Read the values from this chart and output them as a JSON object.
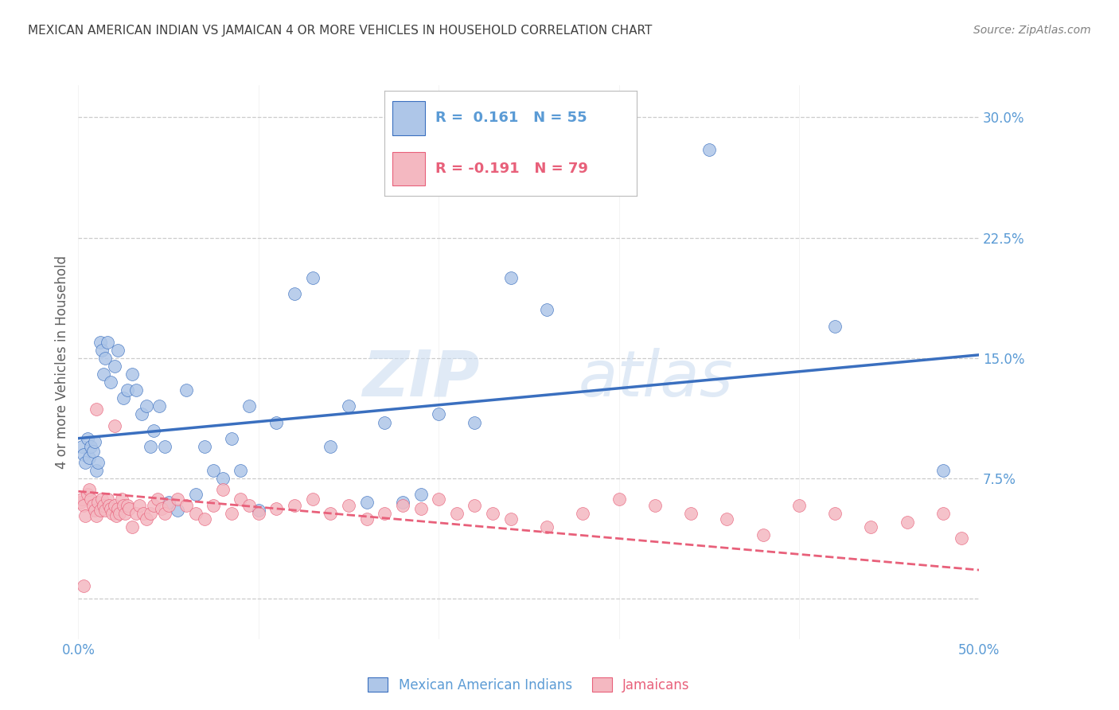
{
  "title": "MEXICAN AMERICAN INDIAN VS JAMAICAN 4 OR MORE VEHICLES IN HOUSEHOLD CORRELATION CHART",
  "source": "Source: ZipAtlas.com",
  "ylabel": "4 or more Vehicles in Household",
  "xmin": 0.0,
  "xmax": 0.5,
  "ymin": -0.025,
  "ymax": 0.32,
  "yticks": [
    0.0,
    0.075,
    0.15,
    0.225,
    0.3
  ],
  "ytick_labels": [
    "",
    "7.5%",
    "15.0%",
    "22.5%",
    "30.0%"
  ],
  "xticks": [
    0.0,
    0.5
  ],
  "xtick_labels": [
    "0.0%",
    "50.0%"
  ],
  "blue_R": "0.161",
  "blue_N": "55",
  "pink_R": "-0.191",
  "pink_N": "79",
  "blue_line_x": [
    0.0,
    0.5
  ],
  "blue_line_y": [
    0.1,
    0.152
  ],
  "pink_line_x": [
    0.0,
    0.5
  ],
  "pink_line_y": [
    0.067,
    0.018
  ],
  "blue_dots_x": [
    0.002,
    0.003,
    0.004,
    0.005,
    0.006,
    0.007,
    0.008,
    0.009,
    0.01,
    0.011,
    0.012,
    0.013,
    0.014,
    0.015,
    0.016,
    0.018,
    0.02,
    0.022,
    0.025,
    0.027,
    0.03,
    0.032,
    0.035,
    0.038,
    0.04,
    0.042,
    0.045,
    0.048,
    0.05,
    0.055,
    0.06,
    0.065,
    0.07,
    0.075,
    0.08,
    0.085,
    0.09,
    0.095,
    0.1,
    0.11,
    0.12,
    0.13,
    0.14,
    0.15,
    0.16,
    0.17,
    0.18,
    0.19,
    0.2,
    0.22,
    0.24,
    0.26,
    0.35,
    0.42,
    0.48
  ],
  "blue_dots_y": [
    0.095,
    0.09,
    0.085,
    0.1,
    0.088,
    0.095,
    0.092,
    0.098,
    0.08,
    0.085,
    0.16,
    0.155,
    0.14,
    0.15,
    0.16,
    0.135,
    0.145,
    0.155,
    0.125,
    0.13,
    0.14,
    0.13,
    0.115,
    0.12,
    0.095,
    0.105,
    0.12,
    0.095,
    0.06,
    0.055,
    0.13,
    0.065,
    0.095,
    0.08,
    0.075,
    0.1,
    0.08,
    0.12,
    0.055,
    0.11,
    0.19,
    0.2,
    0.095,
    0.12,
    0.06,
    0.11,
    0.06,
    0.065,
    0.115,
    0.11,
    0.2,
    0.18,
    0.28,
    0.17,
    0.08
  ],
  "pink_dots_x": [
    0.001,
    0.002,
    0.003,
    0.004,
    0.005,
    0.006,
    0.007,
    0.008,
    0.009,
    0.01,
    0.011,
    0.012,
    0.013,
    0.014,
    0.015,
    0.016,
    0.017,
    0.018,
    0.019,
    0.02,
    0.021,
    0.022,
    0.023,
    0.024,
    0.025,
    0.026,
    0.027,
    0.028,
    0.03,
    0.032,
    0.034,
    0.036,
    0.038,
    0.04,
    0.042,
    0.044,
    0.046,
    0.048,
    0.05,
    0.055,
    0.06,
    0.065,
    0.07,
    0.075,
    0.08,
    0.085,
    0.09,
    0.095,
    0.1,
    0.11,
    0.12,
    0.13,
    0.14,
    0.15,
    0.16,
    0.17,
    0.18,
    0.19,
    0.2,
    0.21,
    0.22,
    0.23,
    0.24,
    0.26,
    0.28,
    0.3,
    0.32,
    0.34,
    0.36,
    0.38,
    0.4,
    0.42,
    0.44,
    0.46,
    0.48,
    0.49,
    0.01,
    0.02,
    0.003
  ],
  "pink_dots_y": [
    0.06,
    0.062,
    0.058,
    0.052,
    0.065,
    0.068,
    0.062,
    0.058,
    0.055,
    0.052,
    0.06,
    0.055,
    0.062,
    0.058,
    0.055,
    0.062,
    0.058,
    0.056,
    0.053,
    0.058,
    0.052,
    0.056,
    0.053,
    0.062,
    0.058,
    0.053,
    0.058,
    0.056,
    0.045,
    0.053,
    0.058,
    0.053,
    0.05,
    0.053,
    0.058,
    0.062,
    0.056,
    0.053,
    0.058,
    0.062,
    0.058,
    0.053,
    0.05,
    0.058,
    0.068,
    0.053,
    0.062,
    0.058,
    0.053,
    0.056,
    0.058,
    0.062,
    0.053,
    0.058,
    0.05,
    0.053,
    0.058,
    0.056,
    0.062,
    0.053,
    0.058,
    0.053,
    0.05,
    0.045,
    0.053,
    0.062,
    0.058,
    0.053,
    0.05,
    0.04,
    0.058,
    0.053,
    0.045,
    0.048,
    0.053,
    0.038,
    0.118,
    0.108,
    0.008
  ],
  "blue_color": "#aec6e8",
  "pink_color": "#f4b8c1",
  "blue_line_color": "#3a6fbf",
  "pink_line_color": "#e8607a",
  "watermark_zip": "ZIP",
  "watermark_atlas": "atlas",
  "background_color": "#ffffff",
  "grid_color": "#cccccc",
  "axis_color": "#5b9bd5",
  "title_color": "#404040",
  "source_color": "#808080",
  "ylabel_color": "#606060",
  "legend_label_blue": "Mexican American Indians",
  "legend_label_pink": "Jamaicans"
}
